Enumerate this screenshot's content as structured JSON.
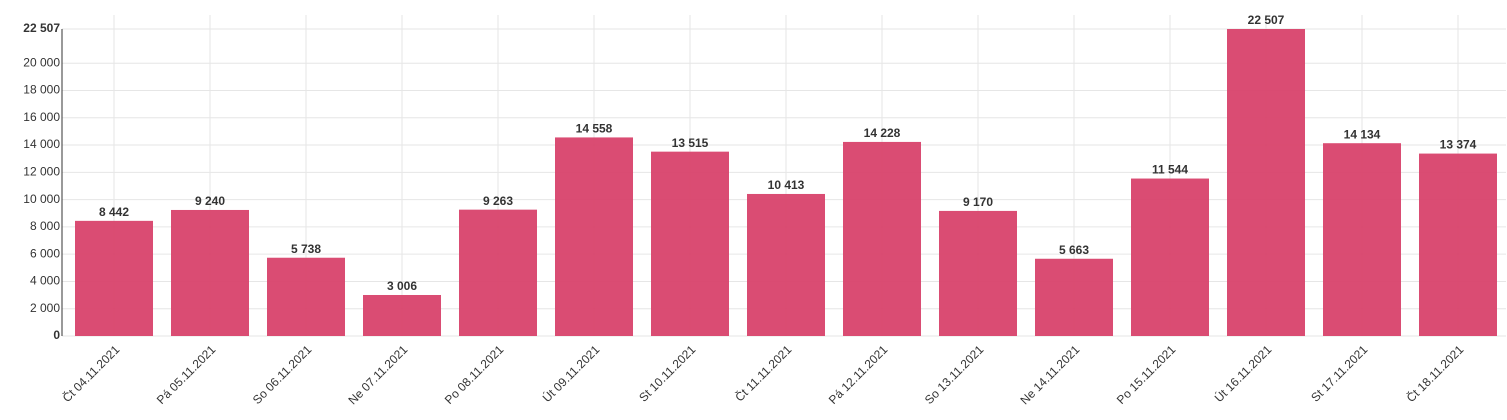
{
  "chart_data": {
    "type": "bar",
    "categories": [
      "Čt 04.11.2021",
      "Pá 05.11.2021",
      "So 06.11.2021",
      "Ne 07.11.2021",
      "Po 08.11.2021",
      "Út 09.11.2021",
      "St 10.11.2021",
      "Čt 11.11.2021",
      "Pá 12.11.2021",
      "So 13.11.2021",
      "Ne 14.11.2021",
      "Po 15.11.2021",
      "Út 16.11.2021",
      "St 17.11.2021",
      "Čt 18.11.2021"
    ],
    "values": [
      8442,
      9240,
      5738,
      3006,
      9263,
      14558,
      13515,
      10413,
      14228,
      9170,
      5663,
      11544,
      22507,
      14134,
      13374
    ],
    "value_labels": [
      "8 442",
      "9 240",
      "5 738",
      "3 006",
      "9 263",
      "14 558",
      "13 515",
      "10 413",
      "14 228",
      "9 170",
      "5 663",
      "11 544",
      "22 507",
      "14 134",
      "13 374"
    ],
    "color": "#d8426c",
    "ylim": [
      0,
      22507
    ],
    "yticks": [
      0,
      {
        "value": 2000,
        "label": "2 000"
      },
      {
        "value": 4000,
        "label": "4 000"
      },
      {
        "value": 6000,
        "label": "6 000"
      },
      {
        "value": 8000,
        "label": "8 000"
      },
      {
        "value": 10000,
        "label": "10 000"
      },
      {
        "value": 12000,
        "label": "12 000"
      },
      {
        "value": 14000,
        "label": "14 000"
      },
      {
        "value": 16000,
        "label": "16 000"
      },
      {
        "value": 18000,
        "label": "18 000"
      },
      {
        "value": 20000,
        "label": "20 000"
      },
      {
        "value": 22507,
        "label": "22 507"
      }
    ],
    "grid": true
  }
}
